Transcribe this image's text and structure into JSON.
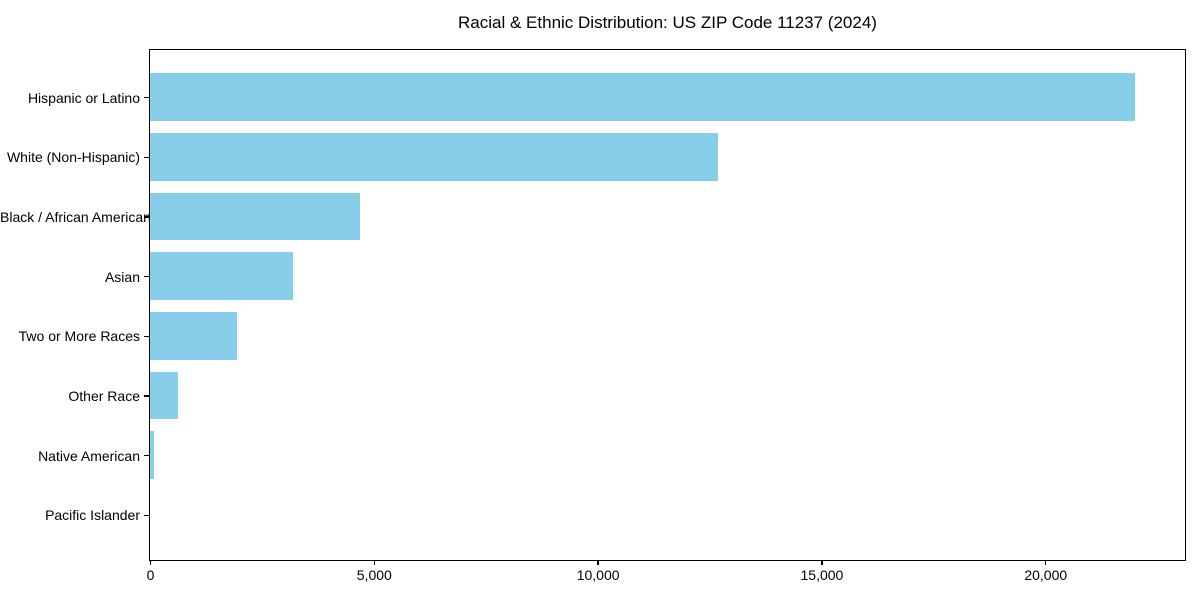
{
  "chart_data": {
    "type": "bar",
    "orientation": "horizontal",
    "title": "Racial & Ethnic Distribution: US ZIP Code 11237 (2024)",
    "categories": [
      "Hispanic or Latino",
      "White (Non-Hispanic)",
      "Black / African American",
      "Asian",
      "Two or More Races",
      "Other Race",
      "Native American",
      "Pacific Islander"
    ],
    "values": [
      22000,
      12700,
      4700,
      3200,
      1950,
      620,
      80,
      0
    ],
    "xlabel": "",
    "ylabel": "",
    "xlim": [
      0,
      23100
    ],
    "xticks": [
      0,
      5000,
      10000,
      15000,
      20000
    ],
    "xtick_labels": [
      "0",
      "5,000",
      "10,000",
      "15,000",
      "20,000"
    ],
    "bar_color": "#87CEEB",
    "background_color": "#FFFFFF",
    "spine_color": "#000000",
    "grid": false,
    "legend_position": "none"
  }
}
